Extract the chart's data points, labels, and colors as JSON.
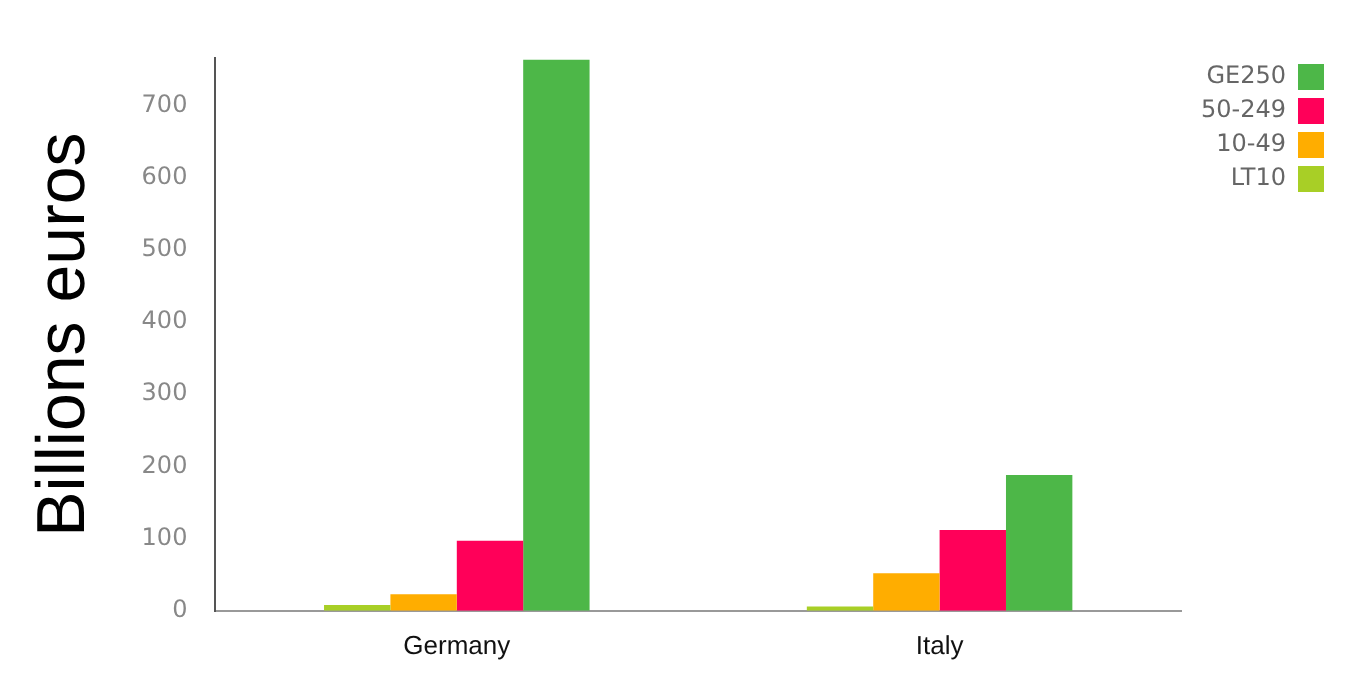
{
  "chart_data": {
    "type": "bar",
    "ylabel": "Billions euros",
    "categories": [
      "Germany",
      "Italy"
    ],
    "series": [
      {
        "name": "LT10",
        "color": "#a8cf26",
        "values": [
          8,
          6
        ]
      },
      {
        "name": "10-49",
        "color": "#ffad00",
        "values": [
          23,
          52
        ]
      },
      {
        "name": "50-249",
        "color": "#ff0059",
        "values": [
          97,
          112
        ]
      },
      {
        "name": "GE250",
        "color": "#4db748",
        "values": [
          763,
          188
        ]
      }
    ],
    "ylim": [
      0,
      765
    ],
    "yticks": [
      0,
      100,
      200,
      300,
      400,
      500,
      600,
      700
    ],
    "grid": false,
    "legend": "top right"
  }
}
